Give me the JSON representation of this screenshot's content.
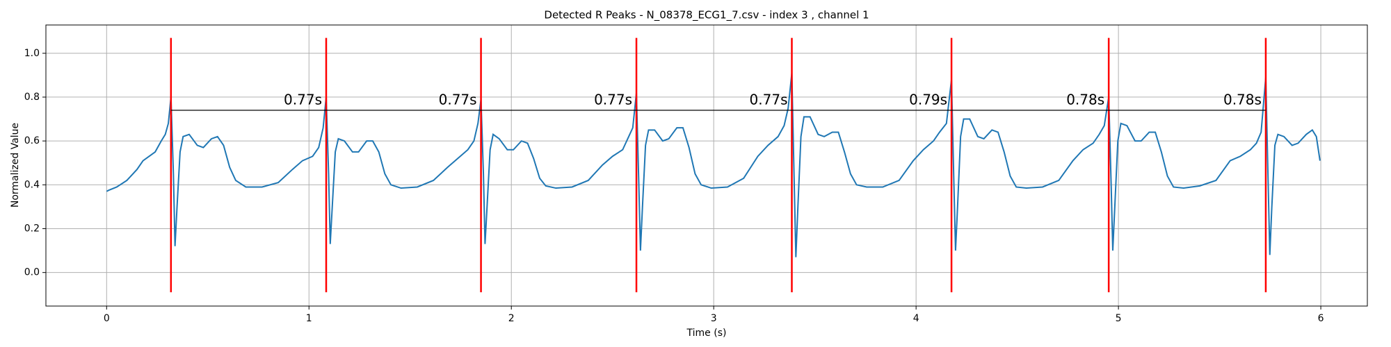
{
  "chart_data": {
    "type": "line",
    "title": "Detected R Peaks - N_08378_ECG1_7.csv - index 3 , channel 1",
    "x_label": "Time (s)",
    "y_label": "Normalized Value",
    "color": "#1f77b4",
    "x": [
      0,
      0.01,
      0.05,
      0.1,
      0.15,
      0.18,
      0.24,
      0.27,
      0.29,
      0.305,
      0.318,
      0.33,
      0.338,
      0.348,
      0.363,
      0.378,
      0.408,
      0.448,
      0.478,
      0.518,
      0.548,
      0.578,
      0.608,
      0.638,
      0.688,
      0.768,
      0.848,
      0.918,
      0.968,
      1.018,
      1.048,
      1.07,
      1.085,
      1.097,
      1.105,
      1.115,
      1.13,
      1.145,
      1.175,
      1.215,
      1.245,
      1.285,
      1.315,
      1.345,
      1.375,
      1.405,
      1.455,
      1.535,
      1.615,
      1.685,
      1.735,
      1.785,
      1.815,
      1.835,
      1.85,
      1.862,
      1.87,
      1.88,
      1.895,
      1.91,
      1.94,
      1.98,
      2.01,
      2.05,
      2.08,
      2.11,
      2.14,
      2.17,
      2.22,
      2.3,
      2.38,
      2.45,
      2.5,
      2.55,
      2.58,
      2.6,
      2.618,
      2.63,
      2.638,
      2.648,
      2.663,
      2.678,
      2.708,
      2.748,
      2.778,
      2.818,
      2.848,
      2.878,
      2.908,
      2.938,
      2.988,
      3.068,
      3.148,
      3.218,
      3.268,
      3.318,
      3.348,
      3.368,
      3.386,
      3.398,
      3.406,
      3.416,
      3.431,
      3.446,
      3.476,
      3.516,
      3.546,
      3.586,
      3.616,
      3.646,
      3.676,
      3.706,
      3.756,
      3.836,
      3.916,
      3.986,
      4.036,
      4.086,
      4.116,
      4.15,
      4.175,
      4.187,
      4.195,
      4.205,
      4.22,
      4.235,
      4.265,
      4.305,
      4.335,
      4.375,
      4.405,
      4.435,
      4.465,
      4.495,
      4.545,
      4.625,
      4.705,
      4.775,
      4.825,
      4.875,
      4.905,
      4.93,
      4.952,
      4.964,
      4.972,
      4.982,
      4.997,
      5.012,
      5.042,
      5.082,
      5.112,
      5.152,
      5.182,
      5.212,
      5.242,
      5.272,
      5.322,
      5.402,
      5.482,
      5.552,
      5.602,
      5.652,
      5.682,
      5.705,
      5.728,
      5.74,
      5.748,
      5.758,
      5.773,
      5.788,
      5.818,
      5.858,
      5.888,
      5.928,
      5.958,
      5.978,
      5.996
    ],
    "values": [
      0.37,
      0.375,
      0.39,
      0.42,
      0.47,
      0.51,
      0.55,
      0.6,
      0.63,
      0.68,
      0.8,
      0.45,
      0.12,
      0.3,
      0.55,
      0.62,
      0.63,
      0.58,
      0.57,
      0.61,
      0.62,
      0.58,
      0.48,
      0.42,
      0.39,
      0.39,
      0.41,
      0.47,
      0.51,
      0.53,
      0.57,
      0.66,
      0.8,
      0.45,
      0.13,
      0.3,
      0.55,
      0.61,
      0.6,
      0.55,
      0.55,
      0.6,
      0.6,
      0.55,
      0.45,
      0.4,
      0.385,
      0.39,
      0.42,
      0.48,
      0.52,
      0.56,
      0.6,
      0.68,
      0.79,
      0.45,
      0.13,
      0.3,
      0.56,
      0.63,
      0.61,
      0.56,
      0.56,
      0.6,
      0.59,
      0.52,
      0.43,
      0.395,
      0.385,
      0.39,
      0.42,
      0.49,
      0.53,
      0.56,
      0.62,
      0.66,
      0.82,
      0.4,
      0.1,
      0.3,
      0.58,
      0.65,
      0.65,
      0.6,
      0.61,
      0.66,
      0.66,
      0.57,
      0.45,
      0.4,
      0.385,
      0.39,
      0.43,
      0.53,
      0.58,
      0.62,
      0.67,
      0.75,
      0.91,
      0.4,
      0.07,
      0.3,
      0.62,
      0.71,
      0.71,
      0.63,
      0.62,
      0.64,
      0.64,
      0.55,
      0.45,
      0.4,
      0.39,
      0.39,
      0.42,
      0.51,
      0.56,
      0.6,
      0.64,
      0.68,
      0.88,
      0.4,
      0.1,
      0.3,
      0.62,
      0.7,
      0.7,
      0.62,
      0.61,
      0.65,
      0.64,
      0.55,
      0.44,
      0.39,
      0.385,
      0.39,
      0.42,
      0.51,
      0.56,
      0.59,
      0.63,
      0.67,
      0.8,
      0.4,
      0.1,
      0.3,
      0.6,
      0.68,
      0.67,
      0.6,
      0.6,
      0.64,
      0.64,
      0.55,
      0.44,
      0.39,
      0.385,
      0.395,
      0.42,
      0.51,
      0.53,
      0.56,
      0.59,
      0.64,
      0.89,
      0.4,
      0.08,
      0.3,
      0.58,
      0.63,
      0.62,
      0.58,
      0.59,
      0.63,
      0.65,
      0.62,
      0.51
    ],
    "r_peaks": [
      0.318,
      1.085,
      1.85,
      2.618,
      3.386,
      4.175,
      4.952,
      5.728
    ],
    "peak_color": "#ff0000",
    "peak_line_range": [
      -0.09,
      1.07
    ],
    "interval_y": 0.74,
    "interval_color": "#000000",
    "interval_labels": [
      "0.77s",
      "0.77s",
      "0.77s",
      "0.77s",
      "0.79s",
      "0.78s",
      "0.78s"
    ],
    "xlim": [
      -0.3,
      6.23
    ],
    "ylim": [
      -0.153,
      1.129
    ],
    "xticks": [
      0,
      1,
      2,
      3,
      4,
      5,
      6
    ],
    "yticks": [
      {
        "value": 0,
        "label": "0.0"
      },
      0.2,
      0.4,
      0.6,
      0.8,
      {
        "value": 1,
        "label": "1.0"
      }
    ],
    "grid": true
  }
}
